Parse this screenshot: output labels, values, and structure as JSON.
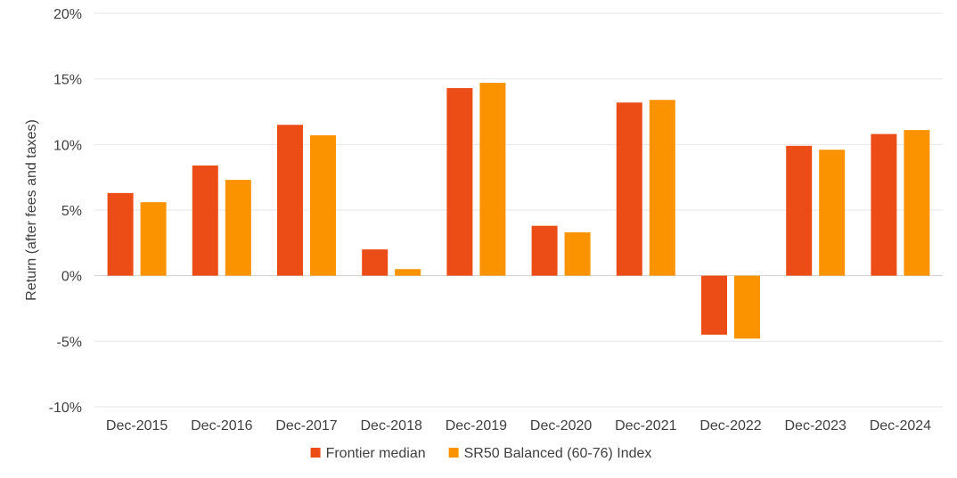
{
  "chart_data": {
    "type": "bar",
    "ylabel": "Return (after fees and taxes)",
    "ylim": [
      -10,
      20
    ],
    "yticks": [
      -10,
      -5,
      0,
      5,
      10,
      15,
      20
    ],
    "ytick_labels": [
      "-10%",
      "-5%",
      "0%",
      "5%",
      "10%",
      "15%",
      "20%"
    ],
    "categories": [
      "Dec-2015",
      "Dec-2016",
      "Dec-2017",
      "Dec-2018",
      "Dec-2019",
      "Dec-2020",
      "Dec-2021",
      "Dec-2022",
      "Dec-2023",
      "Dec-2024"
    ],
    "series": [
      {
        "name": "Frontier median",
        "color": "#ec4d16",
        "values": [
          6.3,
          8.4,
          11.5,
          2.0,
          14.3,
          3.8,
          13.2,
          -4.5,
          9.9,
          10.8
        ]
      },
      {
        "name": "SR50 Balanced (60-76) Index",
        "color": "#fb9300",
        "values": [
          5.6,
          7.3,
          10.7,
          0.5,
          14.7,
          3.3,
          13.4,
          -4.8,
          9.6,
          11.1
        ]
      }
    ],
    "grid": true,
    "legend": "bottom-center"
  }
}
